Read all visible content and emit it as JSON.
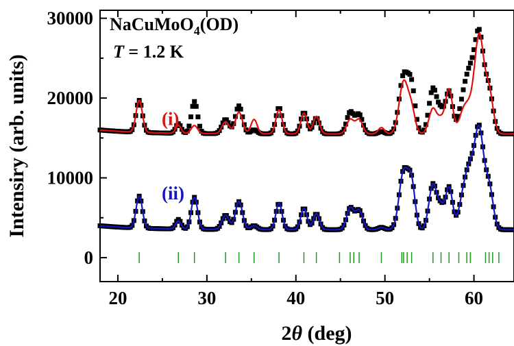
{
  "chart_data": {
    "type": "line",
    "title": "",
    "xlabel": {
      "prefix": "2",
      "symbol": "θ",
      "unit": " (deg)"
    },
    "ylabel": "Intensiry (arb. units)",
    "xlim": [
      18,
      64.5
    ],
    "ylim": [
      -3000,
      31000
    ],
    "xticks": [
      20,
      30,
      40,
      50,
      60
    ],
    "yticks": [
      0,
      10000,
      20000,
      30000
    ],
    "grid": false,
    "annotations": {
      "compound": {
        "base": "NaCuMoO",
        "sub": "4",
        "suffix": "(OD)"
      },
      "temperature": {
        "symbol": "T",
        "text": " = 1.2 K"
      }
    },
    "baseline": 3500,
    "offset_upper": 12000,
    "peaks": [
      {
        "x": 22.4,
        "obs": 4000,
        "fit_i": 4000,
        "fit_ii": 4000,
        "w": 0.35
      },
      {
        "x": 26.8,
        "obs": 1200,
        "fit_i": 1000,
        "fit_ii": 1000,
        "w": 0.3
      },
      {
        "x": 28.6,
        "obs": 4000,
        "fit_i": 1000,
        "fit_ii": 4000,
        "w": 0.35
      },
      {
        "x": 32.1,
        "obs": 1800,
        "fit_i": 1500,
        "fit_ii": 1800,
        "w": 0.4
      },
      {
        "x": 33.6,
        "obs": 3500,
        "fit_i": 2700,
        "fit_ii": 3500,
        "w": 0.4
      },
      {
        "x": 35.3,
        "obs": 500,
        "fit_i": 1800,
        "fit_ii": 500,
        "w": 0.35
      },
      {
        "x": 38.1,
        "obs": 3300,
        "fit_i": 3000,
        "fit_ii": 3300,
        "w": 0.35
      },
      {
        "x": 40.9,
        "obs": 2700,
        "fit_i": 2600,
        "fit_ii": 2700,
        "w": 0.35
      },
      {
        "x": 42.3,
        "obs": 2000,
        "fit_i": 2200,
        "fit_ii": 2000,
        "w": 0.35
      },
      {
        "x": 46.1,
        "obs": 2700,
        "fit_i": 1800,
        "fit_ii": 2700,
        "w": 0.4
      },
      {
        "x": 47.1,
        "obs": 2400,
        "fit_i": 1800,
        "fit_ii": 2400,
        "w": 0.4
      },
      {
        "x": 49.6,
        "obs": 300,
        "fit_i": 800,
        "fit_ii": 300,
        "w": 0.35
      },
      {
        "x": 52.1,
        "obs": 7200,
        "fit_i": 6500,
        "fit_ii": 7200,
        "w": 0.5
      },
      {
        "x": 53.0,
        "obs": 5400,
        "fit_i": 2800,
        "fit_ii": 5400,
        "w": 0.4
      },
      {
        "x": 55.4,
        "obs": 5700,
        "fit_i": 3200,
        "fit_ii": 5700,
        "w": 0.45
      },
      {
        "x": 56.3,
        "obs": 2300,
        "fit_i": 1500,
        "fit_ii": 2300,
        "w": 0.35
      },
      {
        "x": 57.2,
        "obs": 5300,
        "fit_i": 5600,
        "fit_ii": 5300,
        "w": 0.4
      },
      {
        "x": 58.8,
        "obs": 3800,
        "fit_i": 2600,
        "fit_ii": 3800,
        "w": 0.5
      },
      {
        "x": 59.6,
        "obs": 6200,
        "fit_i": 2700,
        "fit_ii": 6200,
        "w": 0.5
      },
      {
        "x": 60.6,
        "obs": 12000,
        "fit_i": 12000,
        "fit_ii": 11900,
        "w": 0.5
      },
      {
        "x": 61.7,
        "obs": 5200,
        "fit_i": 5200,
        "fit_ii": 5200,
        "w": 0.45
      }
    ],
    "series": [
      {
        "name": "(i)",
        "color": "#e01010",
        "label_x": 236,
        "label_y": 16600
      },
      {
        "name": "(ii)",
        "color": "#1515c8",
        "label_x": 236,
        "label_y": 7300
      },
      {
        "color": "#000000",
        "marker": "square"
      },
      {
        "color": "#1a9a1a",
        "marker": "tick"
      }
    ],
    "ticks_x": [
      22.4,
      26.8,
      28.6,
      32.1,
      33.6,
      35.3,
      38.1,
      40.9,
      42.3,
      44.9,
      46.1,
      46.5,
      47.1,
      49.6,
      51.9,
      52.1,
      52.5,
      53.0,
      55.4,
      56.3,
      57.2,
      58.3,
      59.2,
      59.6,
      61.3,
      61.7,
      62.1,
      62.8
    ],
    "tick_y": 0
  }
}
